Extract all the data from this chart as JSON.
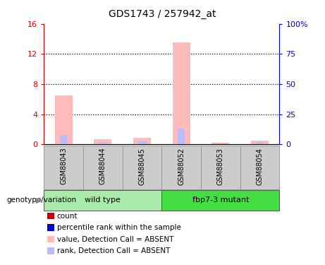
{
  "title": "GDS1743 / 257942_at",
  "samples": [
    "GSM88043",
    "GSM88044",
    "GSM88045",
    "GSM88052",
    "GSM88053",
    "GSM88054"
  ],
  "groups": [
    {
      "label": "wild type",
      "count": 3
    },
    {
      "label": "fbp7-3 mutant",
      "count": 3
    }
  ],
  "group_colors": [
    "#aaeaaa",
    "#44dd44"
  ],
  "value_absent": [
    6.5,
    0.7,
    0.9,
    13.5,
    0.25,
    0.55
  ],
  "rank_absent": [
    1.3,
    0.35,
    0.45,
    2.1,
    0.15,
    0.32
  ],
  "ylim_left": [
    0,
    16
  ],
  "ylim_right": [
    0,
    100
  ],
  "yticks_left": [
    0,
    4,
    8,
    12,
    16
  ],
  "yticks_right": [
    0,
    25,
    50,
    75,
    100
  ],
  "yticklabels_left": [
    "0",
    "4",
    "8",
    "12",
    "16"
  ],
  "yticklabels_right": [
    "0",
    "25",
    "50",
    "75",
    "100%"
  ],
  "color_absent_value": "#ffbbbb",
  "color_absent_rank": "#bbbbff",
  "color_count": "#cc0000",
  "color_rank": "#0000cc",
  "left_label": "genotype/variation",
  "legend_items": [
    {
      "color": "#cc0000",
      "label": "count"
    },
    {
      "color": "#0000cc",
      "label": "percentile rank within the sample"
    },
    {
      "color": "#ffbbbb",
      "label": "value, Detection Call = ABSENT"
    },
    {
      "color": "#bbbbff",
      "label": "rank, Detection Call = ABSENT"
    }
  ]
}
